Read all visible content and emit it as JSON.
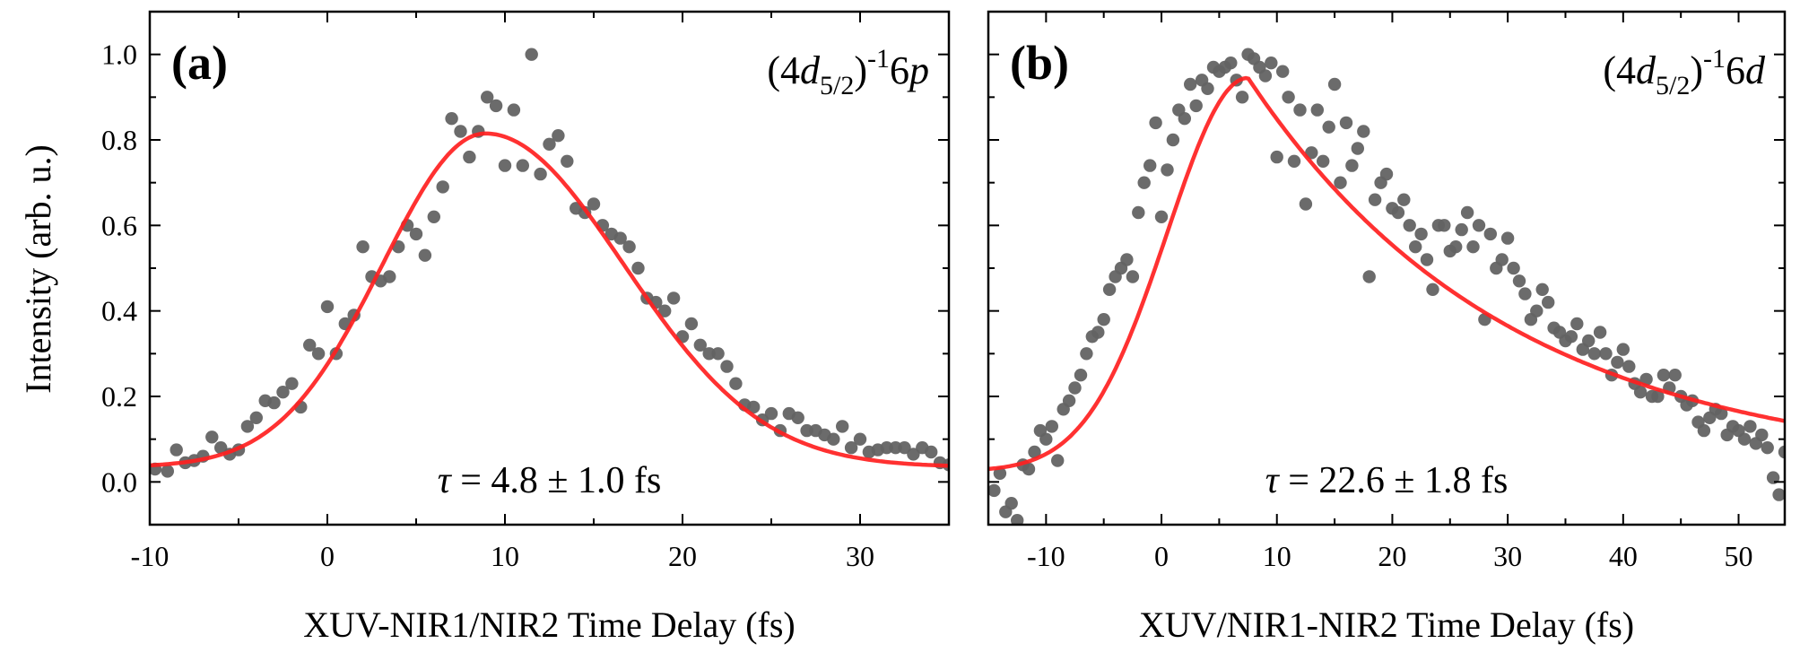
{
  "colors": {
    "points": "#636363",
    "fit": "#ff2020",
    "axis": "#000000"
  },
  "shared": {
    "ylabel": "Intensity (arb. u.)",
    "ylim": [
      -0.1,
      1.1
    ],
    "yticks": [
      "0.0",
      "0.2",
      "0.4",
      "0.6",
      "0.8",
      "1.0"
    ]
  },
  "chart_data": [
    {
      "type": "scatter",
      "panel_label": "(a)",
      "state": {
        "prefix": "(4",
        "orbital": "d",
        "subscript": "5/2",
        "close": ")",
        "power": "-1",
        "final_n": "6",
        "final_l": "p"
      },
      "annotation": {
        "symbol": "τ",
        "text": " = 4.8 ± 1.0 fs"
      },
      "xlabel": "XUV-NIR1/NIR2 Time Delay (fs)",
      "xlim": [
        -10,
        35
      ],
      "xticks": [
        "-10",
        "0",
        "10",
        "20",
        "30"
      ],
      "fit": {
        "name": "fit",
        "type": "line",
        "amplitude": 0.78,
        "center": 8.9,
        "width_rise": 5.8,
        "width_fall": 7.8,
        "baseline": 0.035
      },
      "series": [
        {
          "name": "data",
          "points": [
            [
              -9.7,
              0.03
            ],
            [
              -9.0,
              0.025
            ],
            [
              -8.5,
              0.075
            ],
            [
              -8.0,
              0.045
            ],
            [
              -7.5,
              0.05
            ],
            [
              -7.0,
              0.06
            ],
            [
              -6.5,
              0.105
            ],
            [
              -6.0,
              0.08
            ],
            [
              -5.5,
              0.065
            ],
            [
              -5.0,
              0.075
            ],
            [
              -4.5,
              0.13
            ],
            [
              -4.0,
              0.15
            ],
            [
              -3.5,
              0.19
            ],
            [
              -3.0,
              0.185
            ],
            [
              -2.5,
              0.21
            ],
            [
              -2.0,
              0.23
            ],
            [
              -1.5,
              0.175
            ],
            [
              -1.0,
              0.32
            ],
            [
              -0.5,
              0.3
            ],
            [
              0.0,
              0.41
            ],
            [
              0.5,
              0.3
            ],
            [
              1.0,
              0.37
            ],
            [
              1.5,
              0.39
            ],
            [
              2.0,
              0.55
            ],
            [
              2.5,
              0.48
            ],
            [
              3.0,
              0.47
            ],
            [
              3.5,
              0.48
            ],
            [
              4.0,
              0.55
            ],
            [
              4.5,
              0.6
            ],
            [
              5.0,
              0.58
            ],
            [
              5.5,
              0.53
            ],
            [
              6.0,
              0.62
            ],
            [
              6.5,
              0.69
            ],
            [
              7.0,
              0.85
            ],
            [
              7.5,
              0.82
            ],
            [
              8.0,
              0.76
            ],
            [
              8.5,
              0.82
            ],
            [
              9.0,
              0.9
            ],
            [
              9.5,
              0.88
            ],
            [
              10.0,
              0.74
            ],
            [
              10.5,
              0.87
            ],
            [
              11.0,
              0.74
            ],
            [
              11.5,
              1.0
            ],
            [
              12.0,
              0.72
            ],
            [
              12.5,
              0.79
            ],
            [
              13.0,
              0.81
            ],
            [
              13.5,
              0.75
            ],
            [
              14.0,
              0.64
            ],
            [
              14.5,
              0.63
            ],
            [
              15.0,
              0.65
            ],
            [
              15.5,
              0.6
            ],
            [
              16.0,
              0.58
            ],
            [
              16.5,
              0.57
            ],
            [
              17.0,
              0.55
            ],
            [
              17.5,
              0.5
            ],
            [
              18.0,
              0.43
            ],
            [
              18.5,
              0.42
            ],
            [
              19.0,
              0.4
            ],
            [
              19.5,
              0.43
            ],
            [
              20.0,
              0.34
            ],
            [
              20.5,
              0.37
            ],
            [
              21.0,
              0.32
            ],
            [
              21.5,
              0.3
            ],
            [
              22.0,
              0.3
            ],
            [
              22.5,
              0.27
            ],
            [
              23.0,
              0.23
            ],
            [
              23.5,
              0.18
            ],
            [
              24.0,
              0.175
            ],
            [
              24.5,
              0.145
            ],
            [
              25.0,
              0.16
            ],
            [
              25.5,
              0.12
            ],
            [
              26.0,
              0.16
            ],
            [
              26.5,
              0.15
            ],
            [
              27.0,
              0.12
            ],
            [
              27.5,
              0.12
            ],
            [
              28.0,
              0.11
            ],
            [
              28.5,
              0.1
            ],
            [
              29.0,
              0.13
            ],
            [
              29.5,
              0.08
            ],
            [
              30.0,
              0.1
            ],
            [
              30.5,
              0.07
            ],
            [
              31.0,
              0.075
            ],
            [
              31.5,
              0.08
            ],
            [
              32.0,
              0.08
            ],
            [
              32.5,
              0.08
            ],
            [
              33.0,
              0.065
            ],
            [
              33.5,
              0.08
            ],
            [
              34.0,
              0.07
            ],
            [
              34.5,
              0.045
            ],
            [
              35.0,
              0.04
            ]
          ]
        }
      ]
    },
    {
      "type": "scatter",
      "panel_label": "(b)",
      "state": {
        "prefix": "(4",
        "orbital": "d",
        "subscript": "5/2",
        "close": ")",
        "power": "-1",
        "final_n": "6",
        "final_l": "d"
      },
      "annotation": {
        "symbol": "τ",
        "text": " = 22.6 ± 1.8 fs"
      },
      "xlabel": "XUV/NIR1-NIR2 Time Delay (fs)",
      "xlim": [
        -15,
        54
      ],
      "xticks": [
        "-10",
        "0",
        "10",
        "20",
        "30",
        "40",
        "50"
      ],
      "fit": {
        "name": "fit",
        "type": "line",
        "amplitude": 0.92,
        "center": 7.5,
        "width_rise": 7.0,
        "decay": 22.6,
        "baseline": 0.025
      },
      "series": [
        {
          "name": "data",
          "points": [
            [
              -14.5,
              -0.02
            ],
            [
              -14.0,
              0.02
            ],
            [
              -13.5,
              -0.07
            ],
            [
              -13.0,
              -0.05
            ],
            [
              -12.5,
              -0.09
            ],
            [
              -12.0,
              0.04
            ],
            [
              -11.5,
              0.03
            ],
            [
              -11.0,
              0.07
            ],
            [
              -10.5,
              0.12
            ],
            [
              -10.0,
              0.1
            ],
            [
              -9.5,
              0.13
            ],
            [
              -9.0,
              0.05
            ],
            [
              -8.5,
              0.17
            ],
            [
              -8.0,
              0.19
            ],
            [
              -7.5,
              0.22
            ],
            [
              -7.0,
              0.25
            ],
            [
              -6.5,
              0.3
            ],
            [
              -6.0,
              0.34
            ],
            [
              -5.5,
              0.35
            ],
            [
              -5.0,
              0.38
            ],
            [
              -4.5,
              0.45
            ],
            [
              -4.0,
              0.48
            ],
            [
              -3.5,
              0.5
            ],
            [
              -3.0,
              0.52
            ],
            [
              -2.5,
              0.48
            ],
            [
              -2.0,
              0.63
            ],
            [
              -1.5,
              0.7
            ],
            [
              -1.0,
              0.74
            ],
            [
              -0.5,
              0.84
            ],
            [
              0.0,
              0.62
            ],
            [
              0.5,
              0.73
            ],
            [
              1.0,
              0.8
            ],
            [
              1.5,
              0.87
            ],
            [
              2.0,
              0.85
            ],
            [
              2.5,
              0.93
            ],
            [
              3.0,
              0.88
            ],
            [
              3.5,
              0.94
            ],
            [
              4.0,
              0.92
            ],
            [
              4.5,
              0.97
            ],
            [
              5.0,
              0.96
            ],
            [
              5.5,
              0.97
            ],
            [
              6.0,
              0.98
            ],
            [
              6.5,
              0.94
            ],
            [
              7.0,
              0.9
            ],
            [
              7.5,
              1.0
            ],
            [
              8.0,
              0.99
            ],
            [
              8.5,
              0.97
            ],
            [
              9.0,
              0.95
            ],
            [
              9.5,
              0.98
            ],
            [
              10.0,
              0.76
            ],
            [
              10.5,
              0.96
            ],
            [
              11.0,
              0.9
            ],
            [
              11.5,
              0.75
            ],
            [
              12.0,
              0.87
            ],
            [
              12.5,
              0.65
            ],
            [
              13.0,
              0.77
            ],
            [
              13.5,
              0.87
            ],
            [
              14.0,
              0.75
            ],
            [
              14.5,
              0.83
            ],
            [
              15.0,
              0.93
            ],
            [
              15.5,
              0.7
            ],
            [
              16.0,
              0.84
            ],
            [
              16.5,
              0.74
            ],
            [
              17.0,
              0.78
            ],
            [
              17.5,
              0.82
            ],
            [
              18.0,
              0.48
            ],
            [
              18.5,
              0.66
            ],
            [
              19.0,
              0.7
            ],
            [
              19.5,
              0.72
            ],
            [
              20.0,
              0.64
            ],
            [
              20.5,
              0.63
            ],
            [
              21.0,
              0.66
            ],
            [
              21.5,
              0.6
            ],
            [
              22.0,
              0.55
            ],
            [
              22.5,
              0.58
            ],
            [
              23.0,
              0.52
            ],
            [
              23.5,
              0.45
            ],
            [
              24.0,
              0.6
            ],
            [
              24.5,
              0.6
            ],
            [
              25.0,
              0.54
            ],
            [
              25.5,
              0.55
            ],
            [
              26.0,
              0.59
            ],
            [
              26.5,
              0.63
            ],
            [
              27.0,
              0.55
            ],
            [
              27.5,
              0.6
            ],
            [
              28.0,
              0.38
            ],
            [
              28.5,
              0.58
            ],
            [
              29.0,
              0.5
            ],
            [
              29.5,
              0.52
            ],
            [
              30.0,
              0.57
            ],
            [
              30.5,
              0.5
            ],
            [
              31.0,
              0.47
            ],
            [
              31.5,
              0.44
            ],
            [
              32.0,
              0.38
            ],
            [
              32.5,
              0.4
            ],
            [
              33.0,
              0.45
            ],
            [
              33.5,
              0.42
            ],
            [
              34.0,
              0.36
            ],
            [
              34.5,
              0.35
            ],
            [
              35.0,
              0.33
            ],
            [
              35.5,
              0.34
            ],
            [
              36.0,
              0.37
            ],
            [
              36.5,
              0.31
            ],
            [
              37.0,
              0.33
            ],
            [
              37.5,
              0.3
            ],
            [
              38.0,
              0.35
            ],
            [
              38.5,
              0.3
            ],
            [
              39.0,
              0.25
            ],
            [
              39.5,
              0.28
            ],
            [
              40.0,
              0.31
            ],
            [
              40.5,
              0.27
            ],
            [
              41.0,
              0.23
            ],
            [
              41.5,
              0.21
            ],
            [
              42.0,
              0.24
            ],
            [
              42.5,
              0.2
            ],
            [
              43.0,
              0.2
            ],
            [
              43.5,
              0.25
            ],
            [
              44.0,
              0.22
            ],
            [
              44.5,
              0.25
            ],
            [
              45.0,
              0.2
            ],
            [
              45.5,
              0.18
            ],
            [
              46.0,
              0.19
            ],
            [
              46.5,
              0.14
            ],
            [
              47.0,
              0.12
            ],
            [
              47.5,
              0.15
            ],
            [
              48.0,
              0.17
            ],
            [
              48.5,
              0.16
            ],
            [
              49.0,
              0.11
            ],
            [
              49.5,
              0.13
            ],
            [
              50.0,
              0.12
            ],
            [
              50.5,
              0.1
            ],
            [
              51.0,
              0.13
            ],
            [
              51.5,
              0.09
            ],
            [
              52.0,
              0.11
            ],
            [
              52.5,
              0.08
            ],
            [
              53.0,
              0.01
            ],
            [
              53.5,
              -0.03
            ],
            [
              54.0,
              0.07
            ]
          ]
        }
      ]
    }
  ]
}
